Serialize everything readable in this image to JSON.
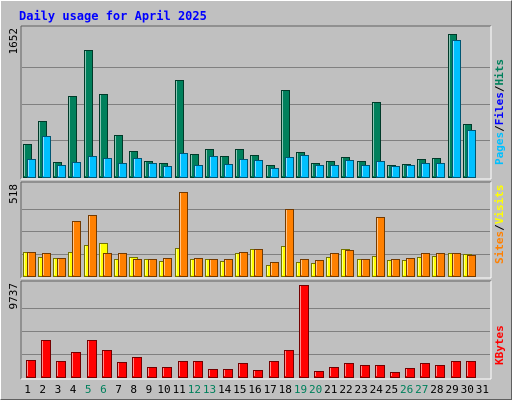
{
  "chart_data": {
    "title": "Daily usage for April 2025",
    "days": [
      1,
      2,
      3,
      4,
      5,
      6,
      7,
      8,
      9,
      10,
      11,
      12,
      13,
      14,
      15,
      16,
      17,
      18,
      19,
      20,
      21,
      22,
      23,
      24,
      25,
      26,
      27,
      28,
      29,
      30,
      31
    ],
    "weekend_days": [
      5,
      6,
      12,
      13,
      19,
      20,
      26,
      27
    ],
    "colors": {
      "hits": "#00805c",
      "files": "#0000ff",
      "pages": "#00c0ff",
      "visits": "#ffff00",
      "sites": "#ff8000",
      "kbytes": "#ff0000",
      "title": "#0000ff",
      "weekday_label": "#000000",
      "weekend_label": "#00805c"
    },
    "panels": [
      {
        "type": "bar",
        "ymax_label": "1652",
        "ymax": 1652,
        "legend": [
          {
            "text": "Hits",
            "color": "#00805c"
          },
          {
            "text": "/",
            "color": "#000000"
          },
          {
            "text": "Files",
            "color": "#0000ff"
          },
          {
            "text": "/",
            "color": "#000000"
          },
          {
            "text": "Pages",
            "color": "#00c0ff"
          }
        ],
        "series": [
          {
            "name": "Hits",
            "color": "#00805c",
            "values": [
              370,
              630,
              170,
              910,
              1430,
              930,
              470,
              290,
              180,
              160,
              1090,
              260,
              320,
              240,
              320,
              250,
              140,
              980,
              280,
              160,
              180,
              230,
              180,
              840,
              140,
              150,
              200,
              210,
              1610,
              590,
              0
            ]
          },
          {
            "name": "Pages",
            "color": "#00c0ff",
            "values": [
              200,
              460,
              140,
              170,
              240,
              210,
              160,
              210,
              160,
              120,
              270,
              140,
              240,
              150,
              200,
              190,
              100,
              230,
              250,
              130,
              130,
              190,
              130,
              180,
              120,
              130,
              160,
              160,
              1540,
              530,
              0
            ]
          }
        ]
      },
      {
        "type": "bar",
        "ymax_label": "518",
        "ymax": 518,
        "legend": [
          {
            "text": "Visits",
            "color": "#ffff00"
          },
          {
            "text": "/",
            "color": "#000000"
          },
          {
            "text": "Sites",
            "color": "#ff8000"
          }
        ],
        "series": [
          {
            "name": "Visits",
            "color": "#ffff00",
            "values": [
              140,
              110,
              105,
              140,
              180,
              190,
              100,
              110,
              95,
              85,
              160,
              95,
              100,
              85,
              130,
              155,
              65,
              170,
              80,
              75,
              110,
              155,
              100,
              115,
              90,
              90,
              110,
              115,
              135,
              125,
              0
            ]
          },
          {
            "name": "Sites",
            "color": "#ff8000",
            "values": [
              140,
              130,
              105,
              315,
              350,
              135,
              130,
              95,
              100,
              105,
              485,
              105,
              95,
              95,
              140,
              155,
              80,
              385,
              95,
              90,
              135,
              150,
              100,
              340,
              100,
              105,
              130,
              130,
              130,
              120,
              0
            ]
          }
        ]
      },
      {
        "type": "bar",
        "ymax_label": "9737",
        "ymax": 9737,
        "legend": [
          {
            "text": "KBytes",
            "color": "#ff0000"
          }
        ],
        "series": [
          {
            "name": "KBytes",
            "color": "#ff0000",
            "values": [
              1850,
              3890,
              1730,
              2660,
              3900,
              2810,
              1560,
              2070,
              1080,
              1080,
              1720,
              1700,
              850,
              860,
              1450,
              790,
              1670,
              2840,
              9737,
              660,
              1100,
              1490,
              1260,
              1270,
              550,
              960,
              1440,
              1270,
              1650,
              1710,
              0
            ]
          }
        ]
      }
    ]
  }
}
